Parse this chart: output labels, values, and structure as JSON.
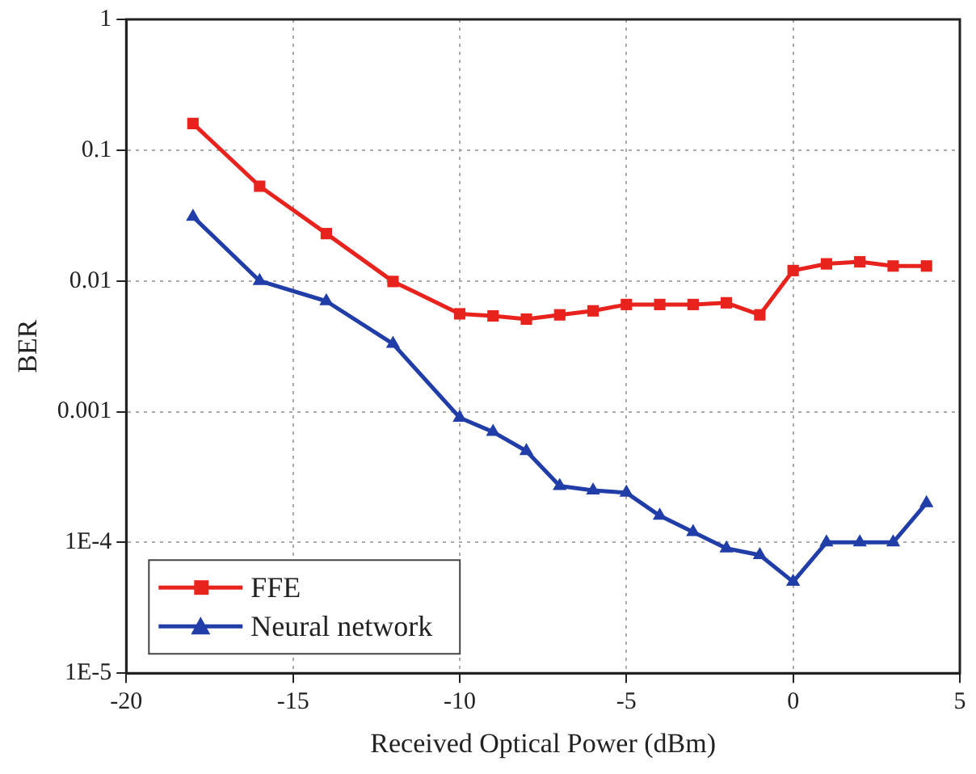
{
  "chart_data": {
    "type": "line",
    "xlabel": "Received Optical Power (dBm)",
    "ylabel": "BER",
    "x": [
      -18,
      -16,
      -14,
      -12,
      -10,
      -9,
      -8,
      -7,
      -6,
      -5,
      -4,
      -3,
      -2,
      -1,
      0,
      1,
      2,
      3,
      4
    ],
    "series": [
      {
        "name": "FFE",
        "color": "#e8221c",
        "marker": "square",
        "values": [
          0.16,
          0.053,
          0.023,
          0.0099,
          0.0056,
          0.0054,
          0.0051,
          0.0055,
          0.0059,
          0.0066,
          0.0066,
          0.0066,
          0.0068,
          0.0055,
          0.012,
          0.0135,
          0.014,
          0.013,
          0.013
        ]
      },
      {
        "name": "Neural network",
        "color": "#213ea8",
        "marker": "triangle",
        "values": [
          0.031,
          0.01,
          0.007,
          0.0033,
          0.0009,
          0.0007,
          0.0005,
          0.00027,
          0.00025,
          0.00024,
          0.00016,
          0.00012,
          9e-05,
          8e-05,
          5e-05,
          0.0001,
          0.0001,
          0.0001,
          0.0002
        ]
      }
    ],
    "xlim": [
      -20,
      5
    ],
    "xticks": [
      -20,
      -15,
      -10,
      -5,
      0,
      5
    ],
    "ylim": [
      1e-05,
      1
    ],
    "yticks": [
      {
        "value": 1e-05,
        "label": "1E-5"
      },
      {
        "value": 0.0001,
        "label": "1E-4"
      },
      0.001,
      0.01,
      0.1,
      1
    ],
    "log": "y",
    "grid": true,
    "legend": "bottom left",
    "line_style": "solid"
  }
}
